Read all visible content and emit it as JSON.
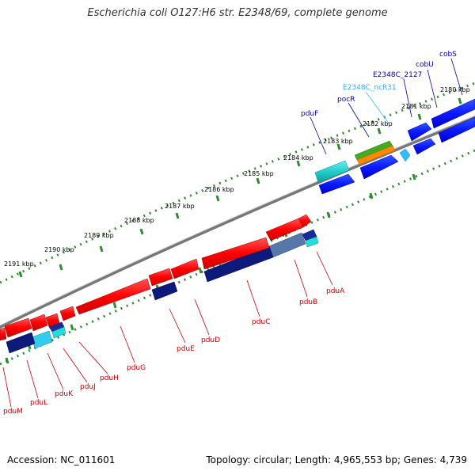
{
  "title": "Escherichia coli O127:H6 str. E2348/69, complete genome",
  "footer": {
    "accession": "Accession: NC_011601",
    "summary": "Topology: circular; Length: 4,965,553 bp; Genes: 4,739"
  },
  "colors": {
    "backbone": "#8c8c8c",
    "tick": "#2e8b2e",
    "forward_label": "#0000aa",
    "reverse_label": "#cc0000",
    "ncrna_label": "#33aaff"
  },
  "ticks": [
    {
      "label": "2180 kbp"
    },
    {
      "label": "2181 kbp"
    },
    {
      "label": "2182 kbp"
    },
    {
      "label": "2183 kbp"
    },
    {
      "label": "2184 kbp"
    },
    {
      "label": "2185 kbp"
    },
    {
      "label": "2186 kbp"
    },
    {
      "label": "2187 kbp"
    },
    {
      "label": "2188 kbp"
    },
    {
      "label": "2189 kbp"
    },
    {
      "label": "2190 kbp"
    },
    {
      "label": "2191 kbp"
    }
  ],
  "forward_labels": [
    {
      "name": "cobS"
    },
    {
      "name": "cobU"
    },
    {
      "name": "E2348C_2127"
    },
    {
      "name": "E2348C_ncR31"
    },
    {
      "name": "pocR"
    },
    {
      "name": "pduF"
    }
  ],
  "reverse_labels": [
    {
      "name": "pduA"
    },
    {
      "name": "pduB"
    },
    {
      "name": "pduC"
    },
    {
      "name": "pduD"
    },
    {
      "name": "pduE"
    },
    {
      "name": "pduG"
    },
    {
      "name": "pduH"
    },
    {
      "name": "pduJ"
    },
    {
      "name": "pduK"
    },
    {
      "name": "pduL"
    },
    {
      "name": "pduM"
    }
  ]
}
